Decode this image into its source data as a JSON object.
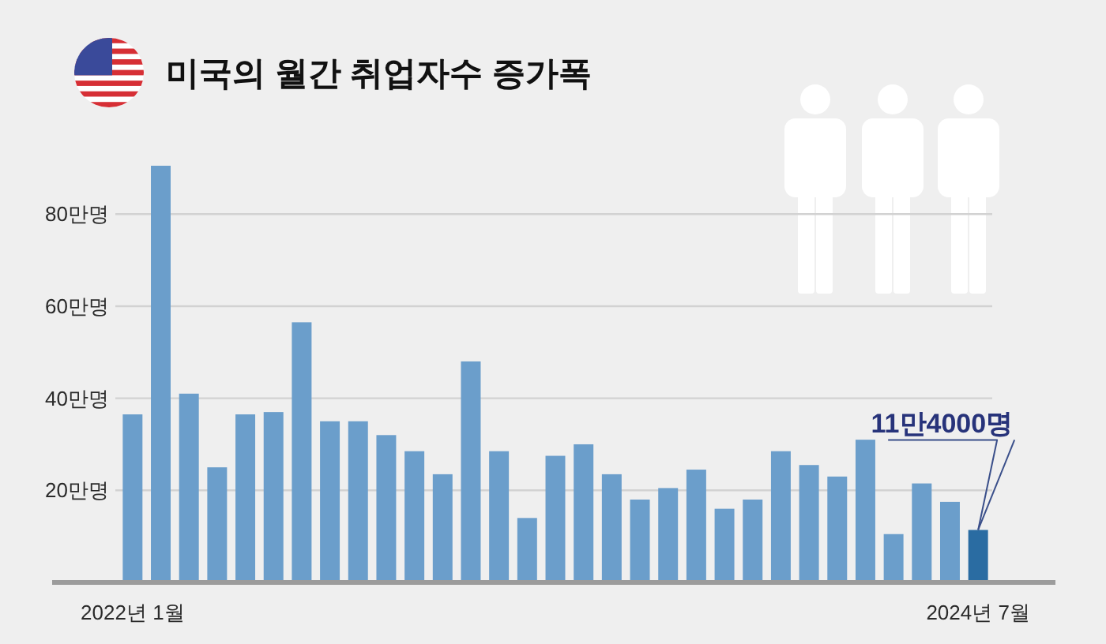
{
  "chart_data": {
    "type": "bar",
    "title": "미국의 월간 취업자수 증가폭",
    "categories": [
      "2022년 1월",
      null,
      null,
      null,
      null,
      null,
      null,
      null,
      null,
      null,
      null,
      null,
      null,
      null,
      null,
      null,
      null,
      null,
      null,
      null,
      null,
      null,
      null,
      null,
      null,
      null,
      null,
      null,
      null,
      null,
      "2024년 7월"
    ],
    "values": [
      36.5,
      90.5,
      41,
      25,
      36.5,
      37,
      56.5,
      35,
      35,
      32,
      28.5,
      23.5,
      48,
      28.5,
      14,
      27.5,
      30,
      23.5,
      18,
      20.5,
      24.5,
      16,
      18,
      28.5,
      25.5,
      23,
      31,
      10.5,
      21.5,
      17.5,
      11.4
    ],
    "colors": [
      "#6b9ecb",
      "#6b9ecb",
      "#6b9ecb",
      "#6b9ecb",
      "#6b9ecb",
      "#6b9ecb",
      "#6b9ecb",
      "#6b9ecb",
      "#6b9ecb",
      "#6b9ecb",
      "#6b9ecb",
      "#6b9ecb",
      "#6b9ecb",
      "#6b9ecb",
      "#6b9ecb",
      "#6b9ecb",
      "#6b9ecb",
      "#6b9ecb",
      "#6b9ecb",
      "#6b9ecb",
      "#6b9ecb",
      "#6b9ecb",
      "#6b9ecb",
      "#6b9ecb",
      "#6b9ecb",
      "#6b9ecb",
      "#6b9ecb",
      "#6b9ecb",
      "#6b9ecb",
      "#6b9ecb",
      "#2a6ca2"
    ],
    "ylim": [
      0,
      90.5
    ],
    "yticks": [
      {
        "value": 20,
        "label": "20만명"
      },
      {
        "value": 40,
        "label": "40만명"
      },
      {
        "value": 60,
        "label": "60만명"
      },
      {
        "value": 80,
        "label": "80만명"
      }
    ],
    "grid": "y",
    "annotations": [
      {
        "text": "11만4000명",
        "x": "2024년 7월",
        "y": 11.4
      }
    ]
  }
}
